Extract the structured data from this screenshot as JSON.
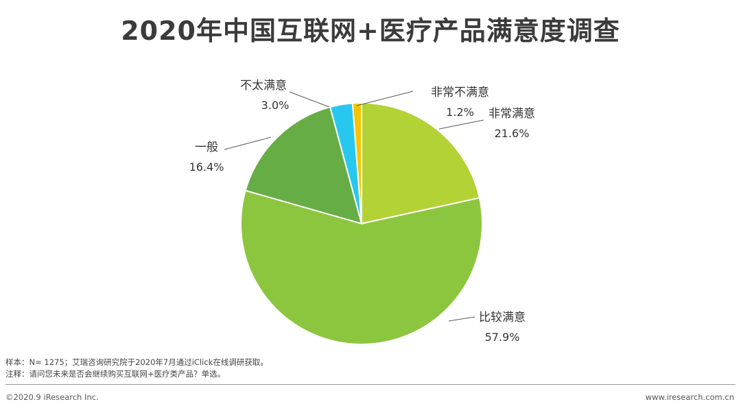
{
  "title": "2020年中国互联网+医疗产品满意度调查",
  "chart_data": {
    "type": "pie",
    "title": "2020年中国互联网+医疗产品满意度调查",
    "categories": [
      "非常不满意",
      "非常满意",
      "比较满意",
      "一般",
      "不太满意"
    ],
    "values": [
      1.2,
      21.6,
      57.9,
      16.4,
      3.0
    ],
    "labels": [
      "1.2%",
      "21.6%",
      "57.9%",
      "16.4%",
      "3.0%"
    ],
    "colors": [
      "#f5c400",
      "#b3d235",
      "#8cc63f",
      "#66ad45",
      "#27c7f0"
    ],
    "unit": "%",
    "legend": "none"
  },
  "notes": {
    "sample": "样本：N= 1275；艾瑞咨询研究院于2020年7月通过iClick在线调研获取。",
    "note": "注释：请问您未来是否会继续购买互联网+医疗类产品？单选。"
  },
  "footer": {
    "copyright": "©2020.9 iResearch Inc.",
    "url": "www.iresearch.com.cn"
  }
}
